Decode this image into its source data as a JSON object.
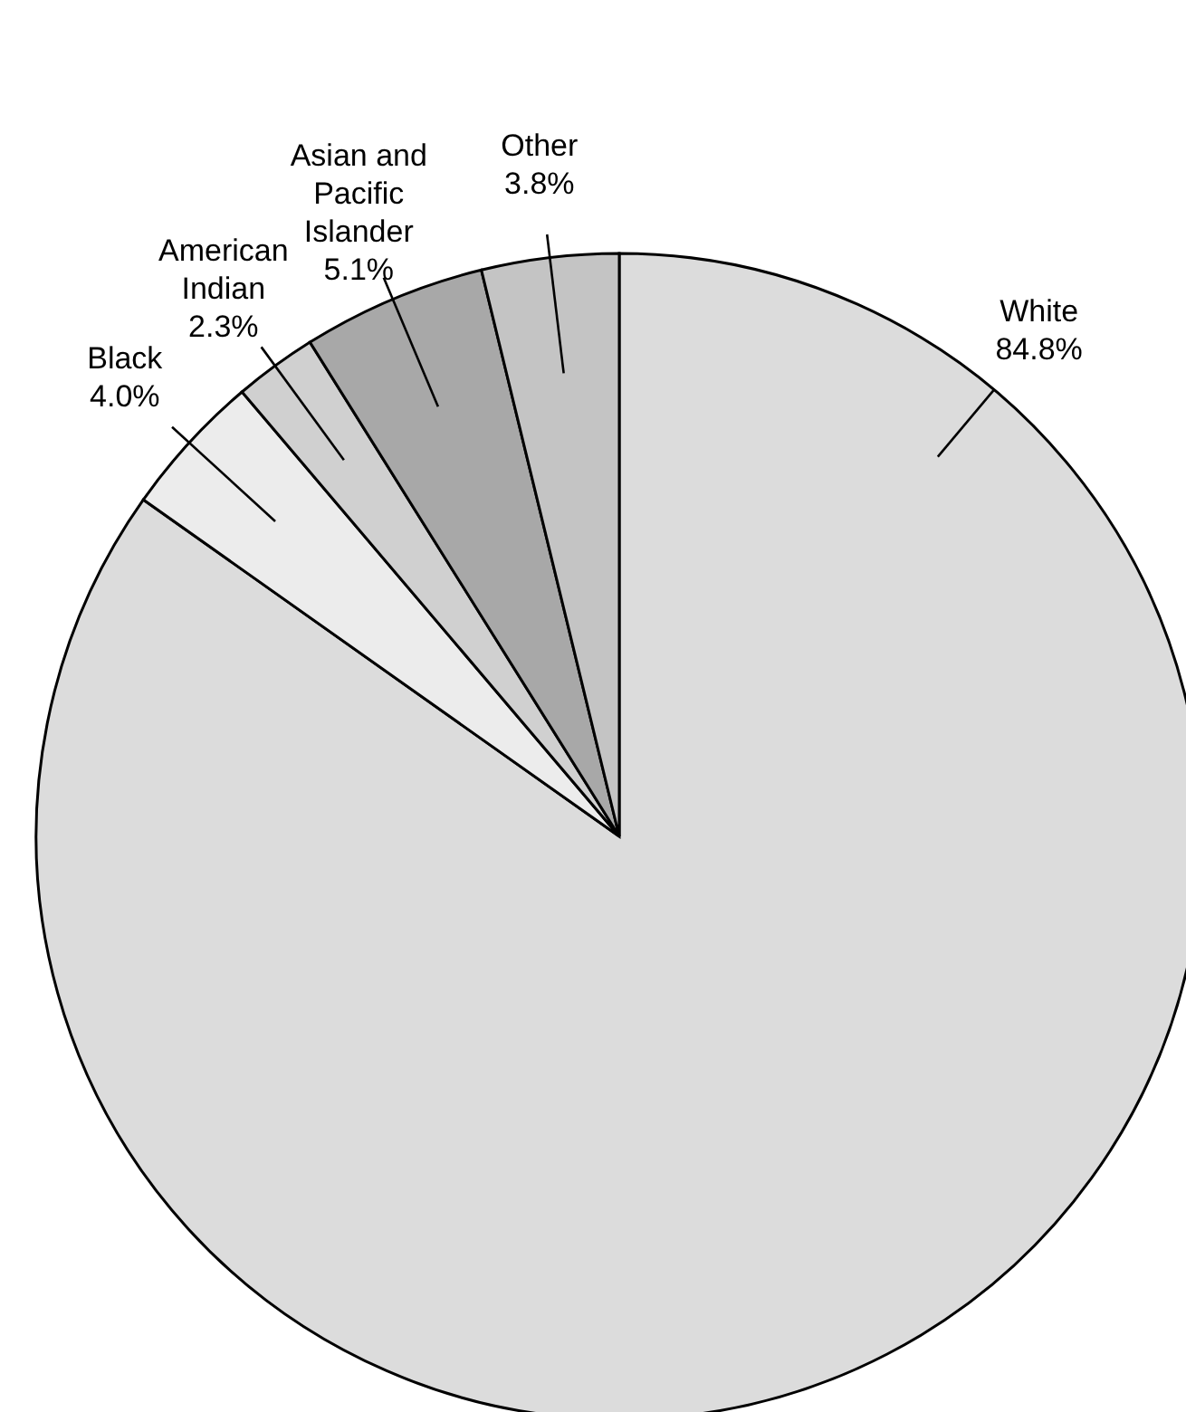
{
  "chart_data": {
    "type": "pie",
    "categories": [
      "White",
      "Black",
      "American Indian",
      "Asian and Pacific Islander",
      "Other"
    ],
    "values": [
      84.8,
      4.0,
      2.3,
      5.1,
      3.8
    ],
    "value_labels": [
      "84.8%",
      "4.0%",
      "2.3%",
      "5.1%",
      "3.8%"
    ],
    "colors": [
      "#dcdcdc",
      "#ececec",
      "#d0d0d0",
      "#a8a8a8",
      "#c4c4c4"
    ]
  }
}
